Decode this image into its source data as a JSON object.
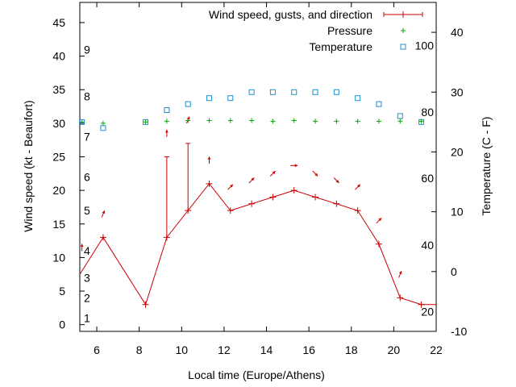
{
  "chart_data": {
    "type": "line",
    "xlabel": "Local time (Europe/Athens)",
    "ylabel_left": "Wind speed (kt - Beaufort)",
    "ylabel_right": "Temperature (C - F)",
    "xlim": [
      5.2,
      22
    ],
    "ylim_left": [
      -1,
      48
    ],
    "ylim_right": [
      -10,
      45
    ],
    "x_ticks": [
      6,
      8,
      10,
      12,
      14,
      16,
      18,
      20,
      22
    ],
    "y_ticks_left": [
      0,
      5,
      10,
      15,
      20,
      25,
      30,
      35,
      40,
      45
    ],
    "y_ticks_right": [
      -10,
      0,
      10,
      20,
      30,
      40
    ],
    "beaufort_labels": [
      {
        "label": "1",
        "kt": 1
      },
      {
        "label": "2",
        "kt": 4
      },
      {
        "label": "3",
        "kt": 7
      },
      {
        "label": "4",
        "kt": 11
      },
      {
        "label": "5",
        "kt": 17
      },
      {
        "label": "6",
        "kt": 22
      },
      {
        "label": "7",
        "kt": 28
      },
      {
        "label": "8",
        "kt": 34
      },
      {
        "label": "9",
        "kt": 41
      }
    ],
    "fahrenheit_labels": [
      {
        "label": "20",
        "c": -6.7
      },
      {
        "label": "40",
        "c": 4.4
      },
      {
        "label": "60",
        "c": 15.6
      },
      {
        "label": "80",
        "c": 26.7
      },
      {
        "label": "100",
        "c": 37.8
      }
    ],
    "legend": [
      {
        "name": "Wind speed, gusts, and direction",
        "color": "#cc0000",
        "marker": "line-plus"
      },
      {
        "name": "Pressure",
        "color": "#00aa00",
        "marker": "plus"
      },
      {
        "name": "Temperature",
        "color": "#1f8fd0",
        "marker": "square"
      }
    ],
    "wind": {
      "x": [
        5.2,
        6.3,
        8.3,
        9.3,
        10.3,
        11.3,
        12.3,
        13.3,
        14.3,
        15.3,
        16.3,
        17.3,
        18.3,
        19.3,
        20.3,
        21.3,
        22
      ],
      "y": [
        7.5,
        13,
        3,
        13,
        17,
        21,
        17,
        18,
        19,
        20,
        19,
        18,
        17,
        12,
        4,
        3,
        3
      ]
    },
    "gusts": [
      {
        "x": 9.3,
        "low": 13,
        "high": 25
      },
      {
        "x": 10.3,
        "low": 17,
        "high": 27
      }
    ],
    "direction_arrows": [
      {
        "x": 5.3,
        "kt": 11.5,
        "dir": "S"
      },
      {
        "x": 6.3,
        "kt": 16.5,
        "dir": "SSW"
      },
      {
        "x": 9.3,
        "kt": 28.5,
        "dir": "S"
      },
      {
        "x": 10.3,
        "kt": 30.5,
        "dir": "SSW"
      },
      {
        "x": 11.3,
        "kt": 24.5,
        "dir": "S"
      },
      {
        "x": 12.3,
        "kt": 20.5,
        "dir": "SW"
      },
      {
        "x": 13.3,
        "kt": 21.5,
        "dir": "SW"
      },
      {
        "x": 14.3,
        "kt": 22.5,
        "dir": "SW"
      },
      {
        "x": 15.3,
        "kt": 23.7,
        "dir": "W"
      },
      {
        "x": 16.3,
        "kt": 22.5,
        "dir": "NW"
      },
      {
        "x": 17.3,
        "kt": 21.5,
        "dir": "NW"
      },
      {
        "x": 18.3,
        "kt": 20.5,
        "dir": "SW"
      },
      {
        "x": 19.3,
        "kt": 15.5,
        "dir": "SW"
      },
      {
        "x": 20.3,
        "kt": 7.5,
        "dir": "SSW"
      }
    ],
    "pressure": {
      "x": [
        5.3,
        6.3,
        8.3,
        9.3,
        10.3,
        11.3,
        12.3,
        13.3,
        14.3,
        15.3,
        16.3,
        17.3,
        18.3,
        19.3,
        20.3,
        21.3
      ],
      "y": [
        30.2,
        30,
        30.2,
        30.3,
        30.4,
        30.4,
        30.4,
        30.4,
        30.3,
        30.4,
        30.3,
        30.3,
        30.3,
        30.3,
        30.3,
        30.3
      ]
    },
    "temperature": {
      "x": [
        5.3,
        6.3,
        8.3,
        9.3,
        10.3,
        11.3,
        12.3,
        13.3,
        14.3,
        15.3,
        16.3,
        17.3,
        18.3,
        19.3,
        20.3,
        21.3
      ],
      "c": [
        25,
        24,
        25,
        27,
        28,
        29,
        29,
        30,
        30,
        30,
        30,
        30,
        29,
        28,
        26,
        25
      ]
    }
  }
}
